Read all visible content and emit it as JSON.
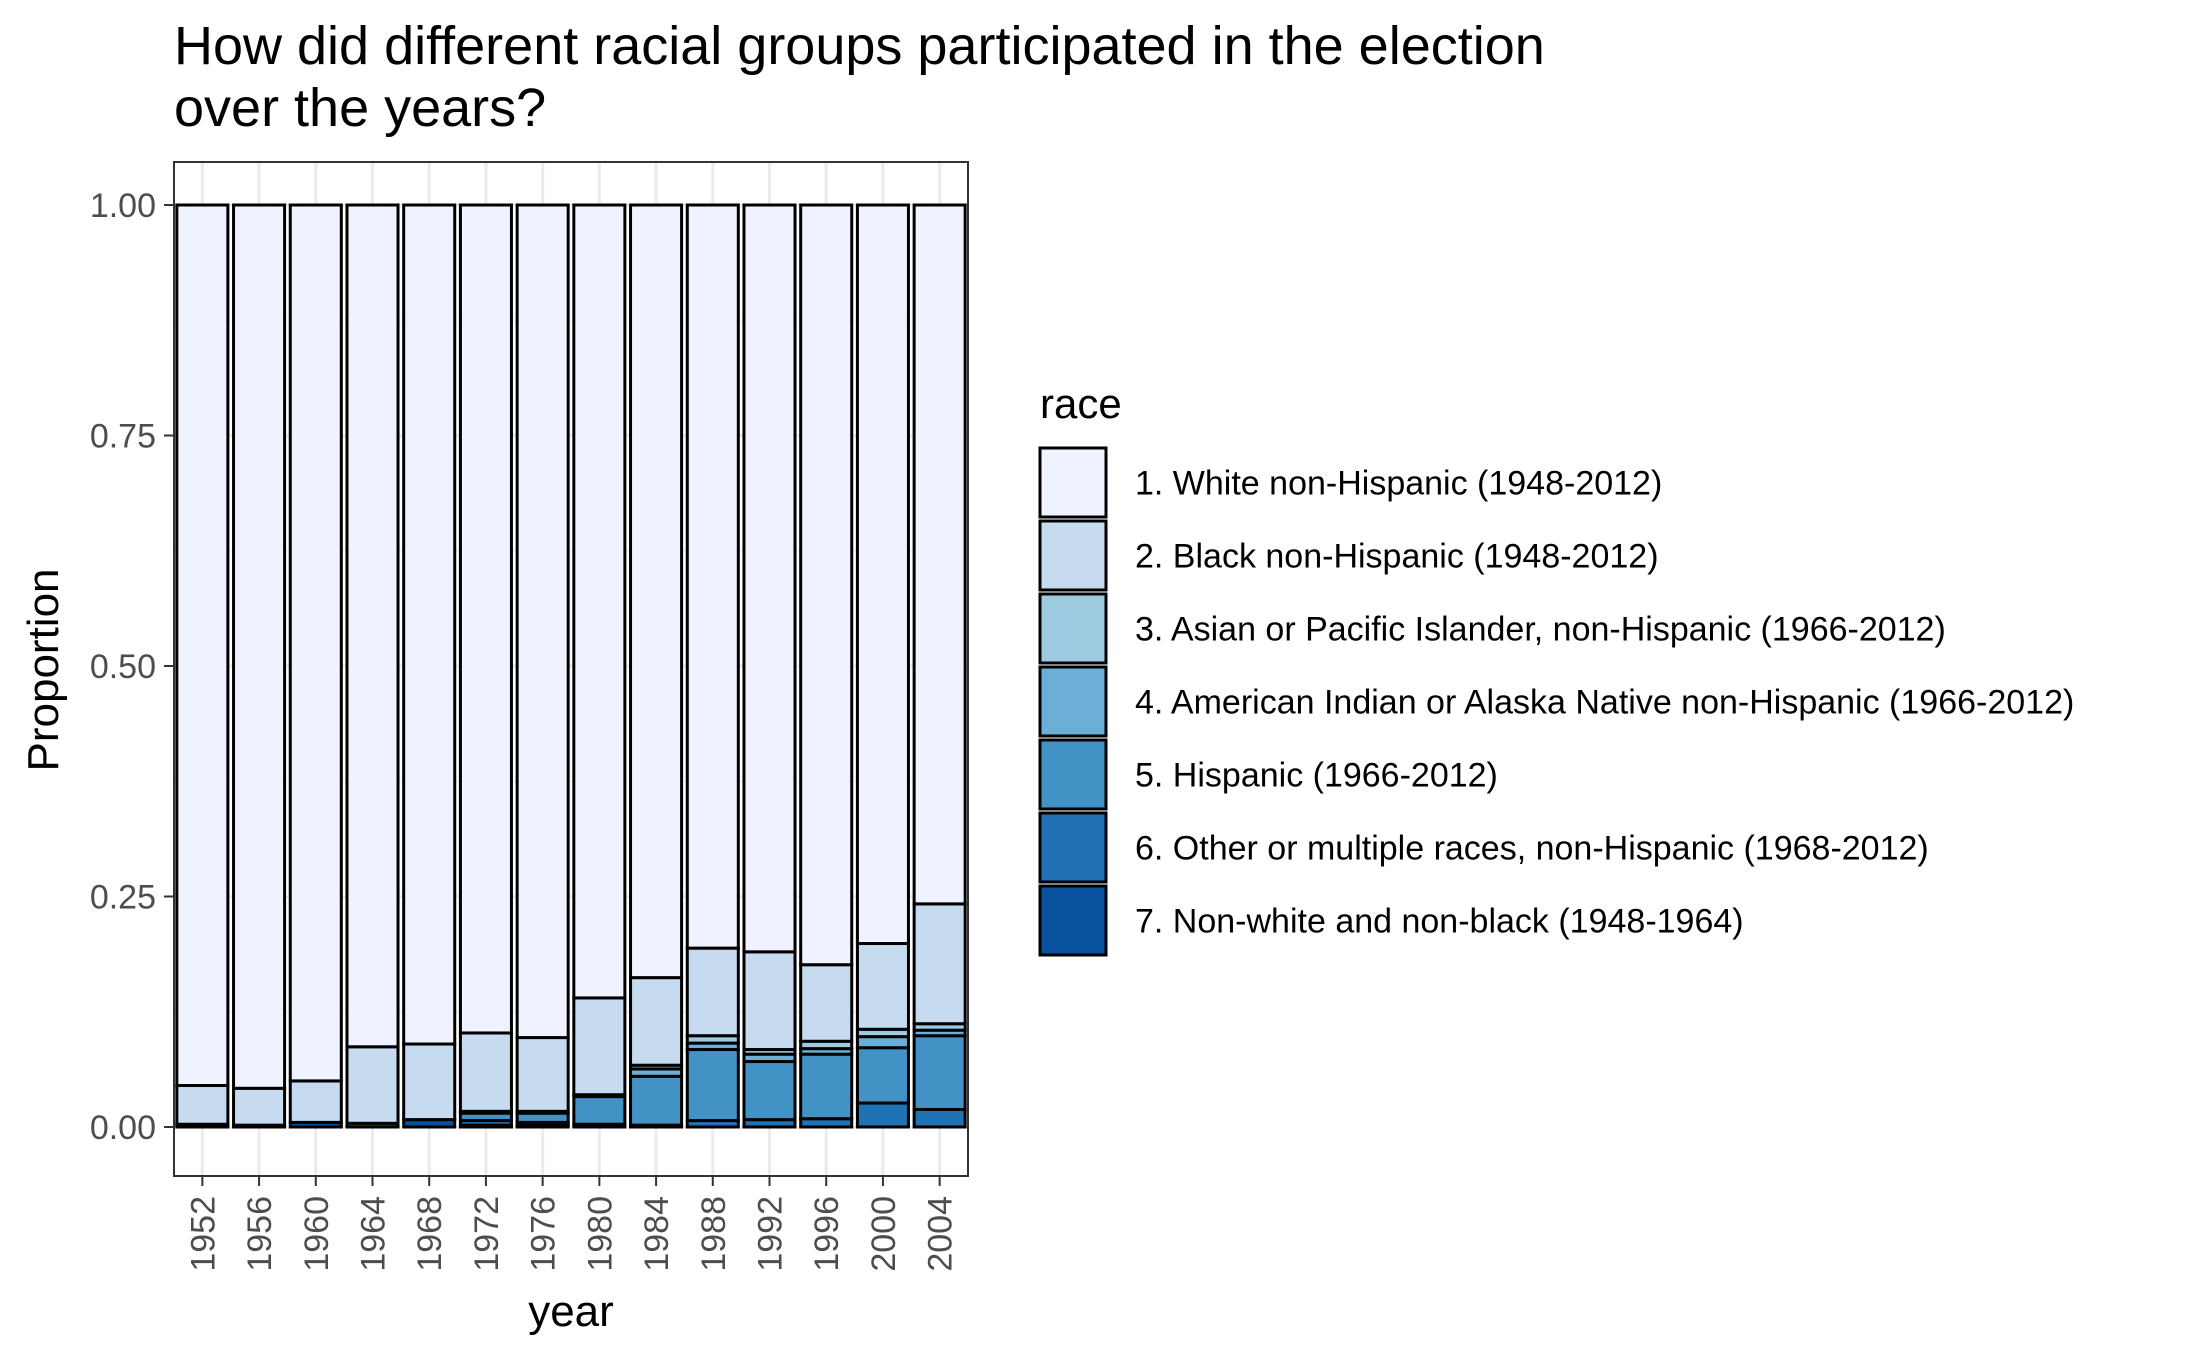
{
  "chart_data": {
    "type": "bar",
    "stacked": true,
    "normalized": true,
    "title_lines": [
      "How did different racial groups participated in the election",
      " over the years?"
    ],
    "xlabel": "year",
    "ylabel": "Proportion",
    "ylim": [
      0,
      1
    ],
    "yticks": [
      "0.00",
      "0.25",
      "0.50",
      "0.75",
      "1.00"
    ],
    "ytick_values": [
      0,
      0.25,
      0.5,
      0.75,
      1
    ],
    "grid": true,
    "legend": {
      "title": "race",
      "placement": "right"
    },
    "categories": [
      "1952",
      "1956",
      "1960",
      "1964",
      "1968",
      "1972",
      "1976",
      "1980",
      "1984",
      "1988",
      "1992",
      "1996",
      "2000",
      "2004"
    ],
    "series": [
      {
        "name": "1. White non-Hispanic (1948-2012)",
        "color": "#eff3ff",
        "values": [
          0.955,
          0.958,
          0.95,
          0.913,
          0.91,
          0.898,
          0.903,
          0.86,
          0.838,
          0.806,
          0.81,
          0.824,
          0.801,
          0.758
        ]
      },
      {
        "name": "2. Black non-Hispanic (1948-2012)",
        "color": "#c6dbef",
        "values": [
          0.042,
          0.04,
          0.045,
          0.083,
          0.082,
          0.085,
          0.08,
          0.105,
          0.095,
          0.095,
          0.106,
          0.083,
          0.093,
          0.13
        ]
      },
      {
        "name": "3. Asian or Pacific Islander, non-Hispanic (1966-2012)",
        "color": "#9ecae1",
        "values": [
          0,
          0,
          0,
          0,
          0,
          0,
          0,
          0,
          0.004,
          0.008,
          0.005,
          0.008,
          0.008,
          0.007
        ]
      },
      {
        "name": "4. American Indian or Alaska Native non-Hispanic (1966-2012)",
        "color": "#6baed6",
        "values": [
          0,
          0,
          0,
          0,
          0,
          0.002,
          0.002,
          0.002,
          0.008,
          0.007,
          0.008,
          0.006,
          0.012,
          0.006
        ]
      },
      {
        "name": "5. Hispanic (1966-2012)",
        "color": "#4292c6",
        "values": [
          0,
          0,
          0,
          0,
          0,
          0.008,
          0.01,
          0.03,
          0.053,
          0.077,
          0.063,
          0.07,
          0.06,
          0.08
        ]
      },
      {
        "name": "6. Other or multiple races, non-Hispanic (1968-2012)",
        "color": "#2171b5",
        "values": [
          0,
          0,
          0,
          0,
          0,
          0.005,
          0.003,
          0.003,
          0.002,
          0.007,
          0.008,
          0.009,
          0.026,
          0.019
        ]
      },
      {
        "name": "7. Non-white and non-black (1948-1964)",
        "color": "#08519c",
        "values": [
          0.003,
          0.002,
          0.005,
          0.004,
          0.008,
          0.002,
          0.002,
          0,
          0,
          0,
          0,
          0,
          0,
          0
        ]
      }
    ]
  }
}
